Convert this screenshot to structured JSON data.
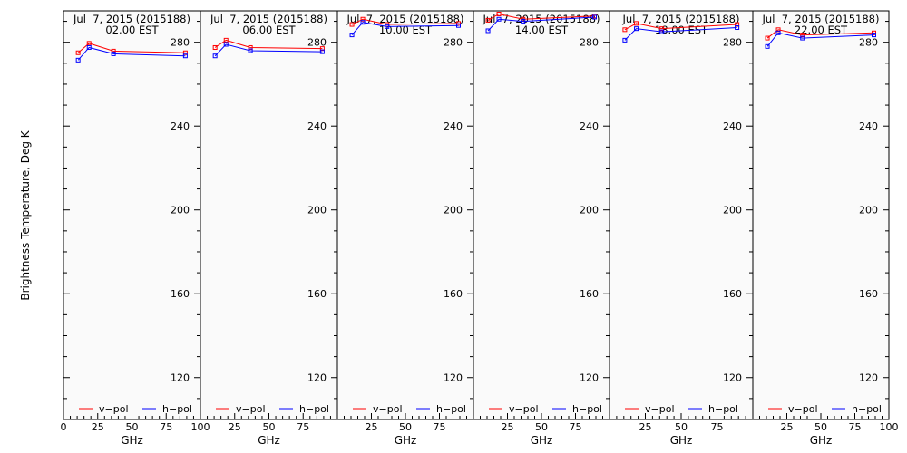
{
  "figure": {
    "ylabel": "Brightness Temperature, Deg K",
    "xlabel": "GHz",
    "x_ticks": [
      "0",
      "25",
      "50",
      "75",
      "100"
    ],
    "y_ticks": [
      "120",
      "160",
      "200",
      "240",
      "280"
    ],
    "legend": [
      "v−pol",
      "h−pol"
    ]
  },
  "colors": {
    "v_pol": "#ff0000",
    "h_pol": "#0000ff",
    "plot_bg": "#fafafa"
  },
  "chart_data": [
    {
      "type": "line",
      "title": "Jul  7, 2015 (2015188)",
      "subtitle": "02.00 EST",
      "xlim": [
        0,
        100
      ],
      "ylim": [
        100,
        295
      ],
      "grid": false,
      "legend_position": "bottom",
      "x": [
        10.7,
        18.7,
        36.5,
        89.0
      ],
      "series": [
        {
          "name": "v−pol",
          "values": [
            275.0,
            279.5,
            275.8,
            275.0
          ]
        },
        {
          "name": "h−pol",
          "values": [
            271.5,
            277.5,
            274.5,
            273.5
          ]
        }
      ]
    },
    {
      "type": "line",
      "title": "Jul  7, 2015 (2015188)",
      "subtitle": "06.00 EST",
      "xlim": [
        0,
        100
      ],
      "ylim": [
        100,
        295
      ],
      "grid": false,
      "legend_position": "bottom",
      "x": [
        10.7,
        18.7,
        36.5,
        89.0
      ],
      "series": [
        {
          "name": "v−pol",
          "values": [
            277.5,
            281.0,
            277.5,
            277.0
          ]
        },
        {
          "name": "h−pol",
          "values": [
            273.5,
            279.0,
            276.0,
            275.5
          ]
        }
      ]
    },
    {
      "type": "line",
      "title": "Jul  7, 2015 (2015188)",
      "subtitle": "10.00 EST",
      "xlim": [
        0,
        100
      ],
      "ylim": [
        100,
        295
      ],
      "grid": false,
      "legend_position": "bottom",
      "x": [
        10.7,
        18.7,
        36.5,
        89.0
      ],
      "series": [
        {
          "name": "v−pol",
          "values": [
            288.5,
            291.0,
            288.5,
            289.0
          ]
        },
        {
          "name": "h−pol",
          "values": [
            283.5,
            289.5,
            287.5,
            288.0
          ]
        }
      ]
    },
    {
      "type": "line",
      "title": "Jul  7, 2015 (2015188)",
      "subtitle": "14.00 EST",
      "xlim": [
        0,
        100
      ],
      "ylim": [
        100,
        295
      ],
      "grid": false,
      "legend_position": "bottom",
      "x": [
        10.7,
        18.7,
        36.5,
        89.0
      ],
      "series": [
        {
          "name": "v−pol",
          "values": [
            290.5,
            293.5,
            291.0,
            292.5
          ]
        },
        {
          "name": "h−pol",
          "values": [
            285.5,
            291.0,
            290.0,
            292.0
          ]
        }
      ]
    },
    {
      "type": "line",
      "title": "Jul  7, 2015 (2015188)",
      "subtitle": "18.00 EST",
      "xlim": [
        0,
        100
      ],
      "ylim": [
        100,
        295
      ],
      "grid": false,
      "legend_position": "bottom",
      "x": [
        10.7,
        18.7,
        36.5,
        89.0
      ],
      "series": [
        {
          "name": "v−pol",
          "values": [
            286.0,
            289.0,
            286.5,
            288.5
          ]
        },
        {
          "name": "h−pol",
          "values": [
            281.0,
            286.5,
            285.0,
            287.0
          ]
        }
      ]
    },
    {
      "type": "line",
      "title": "Jul  7, 2015 (2015188)",
      "subtitle": "22.00 EST",
      "xlim": [
        0,
        100
      ],
      "ylim": [
        100,
        295
      ],
      "grid": false,
      "legend_position": "bottom",
      "x": [
        10.7,
        18.7,
        36.5,
        89.0
      ],
      "series": [
        {
          "name": "v−pol",
          "values": [
            282.0,
            286.0,
            283.5,
            284.5
          ]
        },
        {
          "name": "h−pol",
          "values": [
            278.0,
            284.5,
            282.0,
            283.5
          ]
        }
      ]
    }
  ]
}
